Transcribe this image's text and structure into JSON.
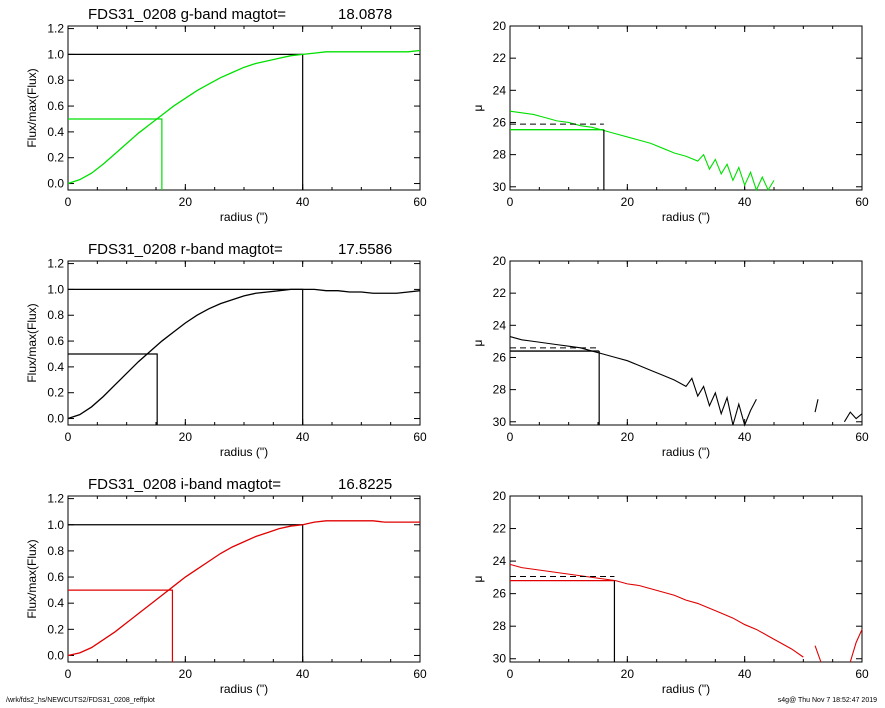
{
  "colors": {
    "g": "#00e000",
    "r": "#000000",
    "i": "#e00000",
    "frame": "#000000"
  },
  "chart_data": [
    {
      "type": "line",
      "panel": "growth-g",
      "title": "FDS31_0208 g-band  magtot=",
      "title_value": "18.0878",
      "xlabel": "radius (\")",
      "ylabel": "Flux/max(Flux)",
      "xlim": [
        0,
        60
      ],
      "ylim": [
        -0.05,
        1.22
      ],
      "xticks": [
        "0",
        "20",
        "40",
        "60"
      ],
      "yticks": [
        "0.0",
        "0.2",
        "0.4",
        "0.6",
        "0.8",
        "1.0",
        "1.2"
      ],
      "color_key": "g",
      "curve": {
        "x": [
          0,
          2,
          4,
          6,
          8,
          10,
          12,
          14,
          16,
          18,
          20,
          22,
          24,
          26,
          28,
          30,
          32,
          34,
          36,
          38,
          40,
          42,
          44,
          46,
          48,
          50,
          52,
          54,
          56,
          58,
          60
        ],
        "y": [
          0.0,
          0.03,
          0.08,
          0.15,
          0.23,
          0.31,
          0.39,
          0.46,
          0.53,
          0.6,
          0.66,
          0.72,
          0.77,
          0.82,
          0.86,
          0.9,
          0.93,
          0.95,
          0.97,
          0.99,
          1.0,
          1.01,
          1.02,
          1.02,
          1.02,
          1.02,
          1.02,
          1.02,
          1.02,
          1.02,
          1.03
        ]
      },
      "ref_half": {
        "x": 16.0,
        "y": 0.5
      },
      "ref_total": {
        "x": 40,
        "y": 1.0
      }
    },
    {
      "type": "line",
      "panel": "profile-g",
      "xlabel": "radius (\")",
      "ylabel": "μ",
      "xlim": [
        0,
        60
      ],
      "ylim": [
        30.2,
        20
      ],
      "xticks": [
        "0",
        "20",
        "40",
        "60"
      ],
      "yticks": [
        "20",
        "22",
        "24",
        "26",
        "28",
        "30"
      ],
      "color_key": "g",
      "profile": {
        "x": [
          0,
          2,
          4,
          6,
          8,
          10,
          12,
          14,
          16,
          18,
          20,
          22,
          24,
          26,
          28,
          30,
          32,
          33,
          34,
          35,
          36,
          37,
          38,
          39,
          40,
          41,
          42,
          43,
          44,
          45
        ],
        "y": [
          25.3,
          25.4,
          25.5,
          25.7,
          25.9,
          26.0,
          26.2,
          26.3,
          26.5,
          26.7,
          26.9,
          27.1,
          27.3,
          27.6,
          27.9,
          28.1,
          28.4,
          28.0,
          28.9,
          28.3,
          29.2,
          28.6,
          29.6,
          28.8,
          29.9,
          29.1,
          30.2,
          29.4,
          30.2,
          29.6
        ]
      },
      "dashed_level": 26.1,
      "solid_level": 26.45,
      "ref_x": 16.0
    },
    {
      "type": "line",
      "panel": "growth-r",
      "title": "FDS31_0208 r-band  magtot=",
      "title_value": "17.5586",
      "xlabel": "radius (\")",
      "ylabel": "Flux/max(Flux)",
      "xlim": [
        0,
        60
      ],
      "ylim": [
        -0.05,
        1.22
      ],
      "xticks": [
        "0",
        "20",
        "40",
        "60"
      ],
      "yticks": [
        "0.0",
        "0.2",
        "0.4",
        "0.6",
        "0.8",
        "1.0",
        "1.2"
      ],
      "color_key": "r",
      "curve": {
        "x": [
          0,
          2,
          4,
          6,
          8,
          10,
          12,
          14,
          16,
          18,
          20,
          22,
          24,
          26,
          28,
          30,
          32,
          34,
          36,
          38,
          40,
          42,
          44,
          46,
          48,
          50,
          52,
          54,
          56,
          58,
          60
        ],
        "y": [
          0.0,
          0.03,
          0.09,
          0.17,
          0.26,
          0.35,
          0.44,
          0.52,
          0.6,
          0.67,
          0.74,
          0.8,
          0.85,
          0.89,
          0.92,
          0.95,
          0.97,
          0.98,
          0.99,
          1.0,
          1.0,
          1.0,
          0.99,
          0.99,
          0.98,
          0.98,
          0.97,
          0.97,
          0.97,
          0.98,
          0.99
        ]
      },
      "ref_half": {
        "x": 15.2,
        "y": 0.5
      },
      "ref_total": {
        "x": 40,
        "y": 1.0
      }
    },
    {
      "type": "line",
      "panel": "profile-r",
      "xlabel": "radius (\")",
      "ylabel": "μ",
      "xlim": [
        0,
        60
      ],
      "ylim": [
        30.2,
        20
      ],
      "xticks": [
        "0",
        "20",
        "40",
        "60"
      ],
      "yticks": [
        "20",
        "22",
        "24",
        "26",
        "28",
        "30"
      ],
      "color_key": "r",
      "profile": {
        "x": [
          0,
          2,
          4,
          6,
          8,
          10,
          12,
          14,
          16,
          18,
          20,
          22,
          24,
          26,
          28,
          30,
          31,
          32,
          33,
          34,
          35,
          36,
          37,
          38,
          39,
          40,
          41,
          42
        ],
        "y": [
          24.7,
          24.9,
          25.0,
          25.1,
          25.2,
          25.3,
          25.4,
          25.6,
          25.8,
          26.0,
          26.2,
          26.5,
          26.8,
          27.1,
          27.4,
          27.8,
          27.3,
          28.4,
          27.8,
          29.0,
          28.2,
          29.5,
          28.5,
          30.2,
          28.9,
          30.2,
          29.3,
          28.6
        ]
      },
      "extra_segments": [
        {
          "x": [
            52,
            52.5
          ],
          "y": [
            29.4,
            28.6
          ]
        },
        {
          "x": [
            57,
            58,
            59,
            60
          ],
          "y": [
            30.0,
            29.4,
            29.8,
            29.5
          ]
        }
      ],
      "dashed_level": 25.4,
      "solid_level": 25.6,
      "ref_x": 15.2
    },
    {
      "type": "line",
      "panel": "growth-i",
      "title": "FDS31_0208 i-band  magtot=",
      "title_value": "16.8225",
      "xlabel": "radius (\")",
      "ylabel": "Flux/max(Flux)",
      "xlim": [
        0,
        60
      ],
      "ylim": [
        -0.05,
        1.22
      ],
      "xticks": [
        "0",
        "20",
        "40",
        "60"
      ],
      "yticks": [
        "0.0",
        "0.2",
        "0.4",
        "0.6",
        "0.8",
        "1.0",
        "1.2"
      ],
      "color_key": "i",
      "curve": {
        "x": [
          0,
          2,
          4,
          6,
          8,
          10,
          12,
          14,
          16,
          18,
          20,
          22,
          24,
          26,
          28,
          30,
          32,
          34,
          36,
          38,
          40,
          42,
          44,
          46,
          48,
          50,
          52,
          54,
          56,
          58,
          60
        ],
        "y": [
          0.0,
          0.02,
          0.06,
          0.12,
          0.18,
          0.25,
          0.32,
          0.39,
          0.46,
          0.53,
          0.6,
          0.66,
          0.72,
          0.78,
          0.83,
          0.87,
          0.91,
          0.94,
          0.97,
          0.99,
          1.0,
          1.02,
          1.03,
          1.03,
          1.03,
          1.03,
          1.03,
          1.02,
          1.02,
          1.02,
          1.02
        ]
      },
      "ref_half": {
        "x": 17.8,
        "y": 0.5
      },
      "ref_total": {
        "x": 40,
        "y": 1.0
      }
    },
    {
      "type": "line",
      "panel": "profile-i",
      "xlabel": "radius (\")",
      "ylabel": "μ",
      "xlim": [
        0,
        60
      ],
      "ylim": [
        30.2,
        20
      ],
      "xticks": [
        "0",
        "20",
        "40",
        "60"
      ],
      "yticks": [
        "20",
        "22",
        "24",
        "26",
        "28",
        "30"
      ],
      "color_key": "i",
      "profile": {
        "x": [
          0,
          2,
          4,
          6,
          8,
          10,
          12,
          14,
          16,
          18,
          20,
          22,
          24,
          26,
          28,
          30,
          32,
          34,
          36,
          38,
          40,
          42,
          44,
          46,
          48,
          50
        ],
        "y": [
          24.2,
          24.4,
          24.5,
          24.6,
          24.7,
          24.8,
          24.9,
          25.0,
          25.1,
          25.2,
          25.4,
          25.5,
          25.7,
          25.9,
          26.1,
          26.4,
          26.6,
          26.9,
          27.2,
          27.5,
          27.9,
          28.2,
          28.6,
          29.0,
          29.4,
          29.9
        ]
      },
      "extra_segments": [
        {
          "x": [
            52,
            53
          ],
          "y": [
            29.2,
            30.2
          ]
        },
        {
          "x": [
            58,
            59,
            60
          ],
          "y": [
            30.2,
            29.0,
            28.2
          ]
        }
      ],
      "dashed_level": 24.95,
      "solid_level": 25.2,
      "ref_x": 17.8
    }
  ],
  "footer": {
    "left": "/wrk/fds2_hs/NEWCUTS2/FDS31_0208_reffplot",
    "right": "s4g@  Thu Nov  7 18:52:47 2019"
  }
}
